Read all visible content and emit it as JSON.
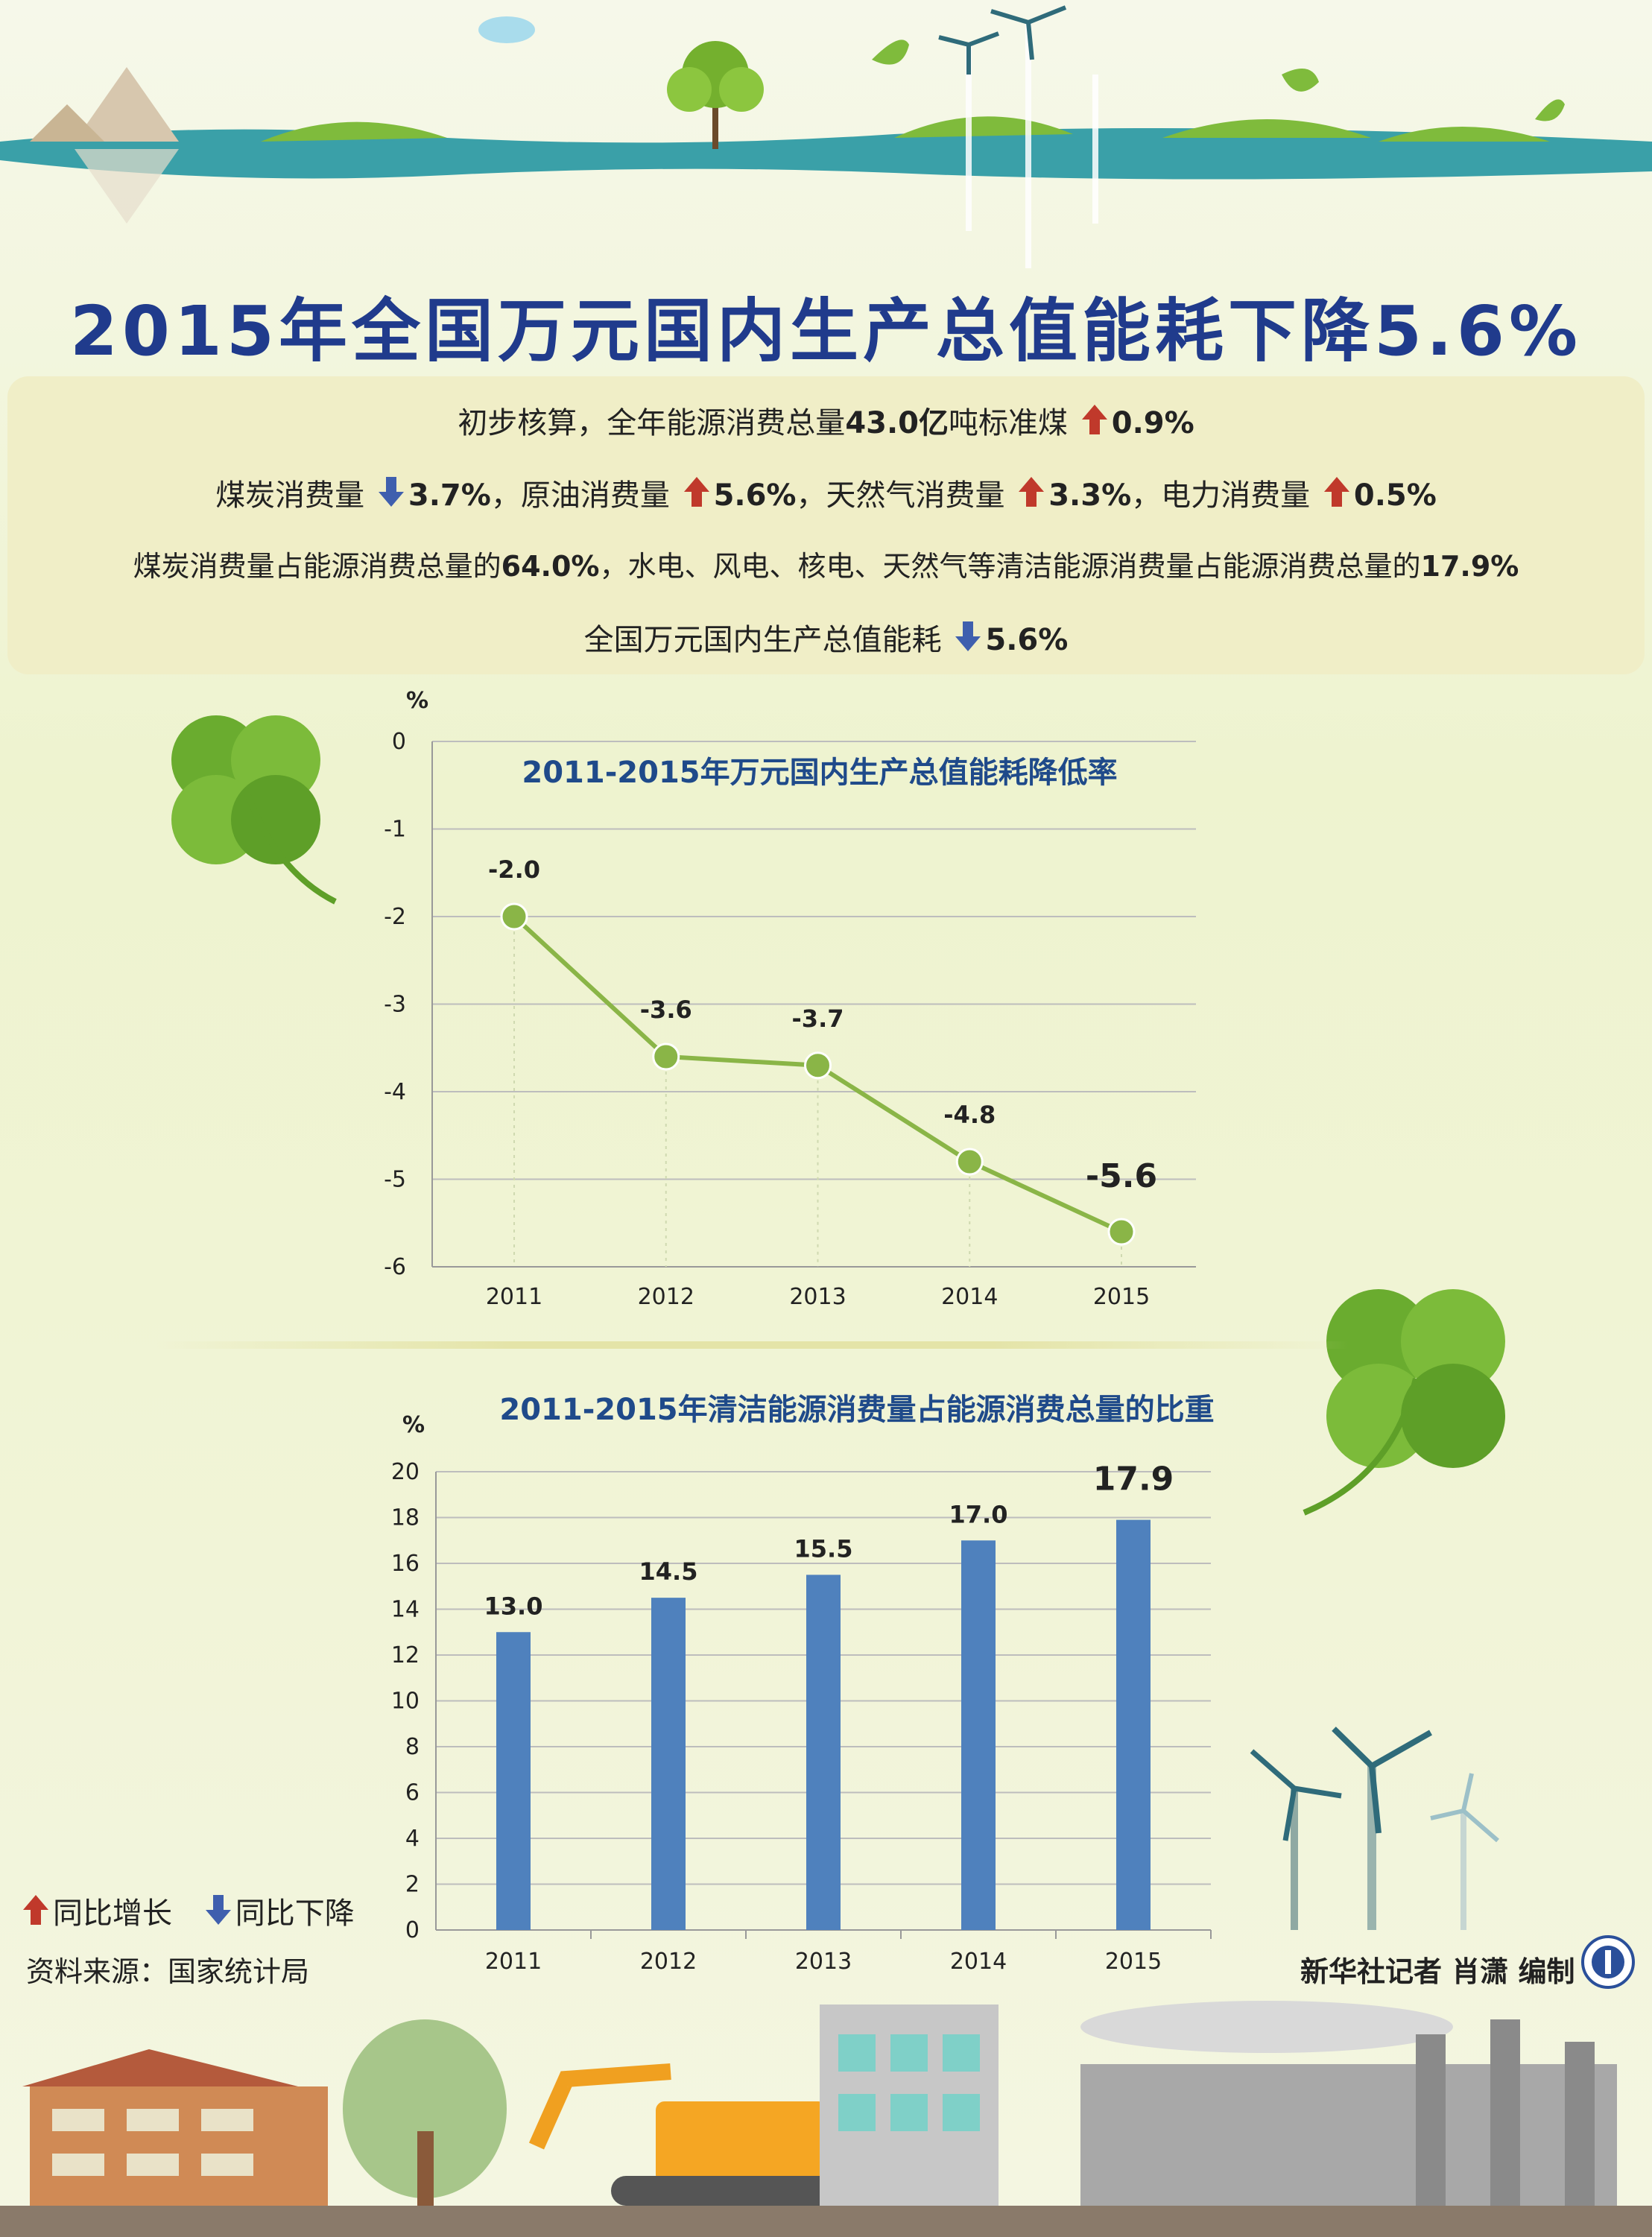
{
  "title": "2015年全国万元国内生产总值能耗下降5.6%",
  "summary": {
    "line1": {
      "prefix": "初步核算，全年能源消费总量",
      "bold1": "43.0亿",
      "mid": "吨标准煤",
      "pct": "0.9%"
    },
    "line2": {
      "coal_label": "煤炭消费量",
      "coal_pct": "3.7%",
      "oil_label": "，原油消费量",
      "oil_pct": "5.6%",
      "gas_label": "，天然气消费量",
      "gas_pct": "3.3%",
      "power_label": "，电力消费量",
      "power_pct": "0.5%"
    },
    "line3": {
      "prefix": "煤炭消费量占能源消费总量的",
      "coal_share": "64.0%",
      "mid": "，水电、风电、核电、天然气等清洁能源消费量占能源消费总量的",
      "clean_share": "17.9%"
    },
    "line4": {
      "prefix": "全国万元国内生产总值能耗",
      "pct": "5.6%"
    }
  },
  "colors": {
    "title": "#203b8c",
    "up_arrow": "#c0392b",
    "down_arrow": "#3f5fae",
    "line": "#8ab547",
    "bar": "#4f81bd"
  },
  "legend": {
    "up": "同比增长",
    "down": "同比下降"
  },
  "source": "资料来源：国家统计局",
  "credit": "新华社记者 肖潇 编制",
  "chart_data": [
    {
      "type": "line",
      "title": "2011-2015年万元国内生产总值能耗降低率",
      "ylabel": "%",
      "categories": [
        "2011",
        "2012",
        "2013",
        "2014",
        "2015"
      ],
      "values": [
        -2.0,
        -3.6,
        -3.7,
        -4.8,
        -5.6
      ],
      "data_labels": [
        "-2.0",
        "-3.6",
        "-3.7",
        "-4.8",
        "-5.6"
      ],
      "yticks": [
        "0",
        "-1",
        "-2",
        "-3",
        "-4",
        "-5",
        "-6"
      ],
      "ylim": [
        -6,
        0
      ],
      "grid": true
    },
    {
      "type": "bar",
      "title": "2011-2015年清洁能源消费量占能源消费总量的比重",
      "ylabel": "%",
      "categories": [
        "2011",
        "2012",
        "2013",
        "2014",
        "2015"
      ],
      "values": [
        13.0,
        14.5,
        15.5,
        17.0,
        17.9
      ],
      "data_labels": [
        "13.0",
        "14.5",
        "15.5",
        "17.0",
        "17.9"
      ],
      "yticks": [
        "0",
        "2",
        "4",
        "6",
        "8",
        "10",
        "12",
        "14",
        "16",
        "18",
        "20"
      ],
      "ylim": [
        0,
        20
      ],
      "grid": true
    }
  ]
}
